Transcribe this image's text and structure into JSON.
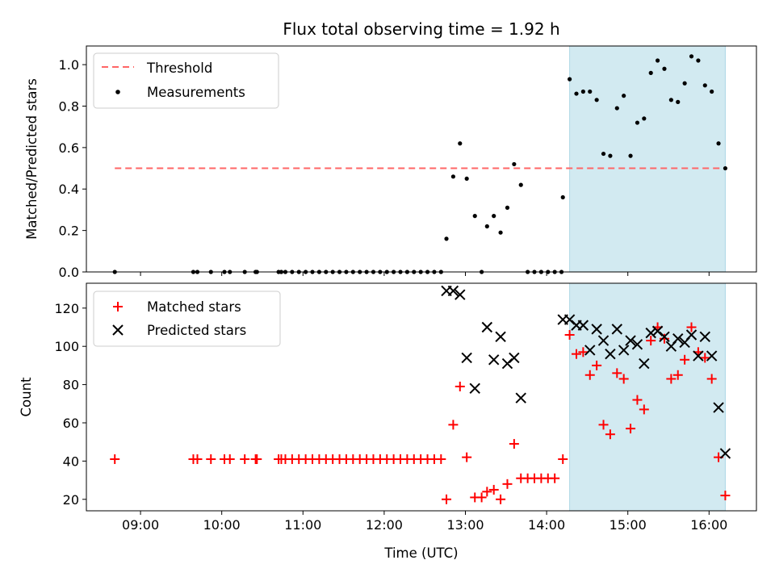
{
  "chart_data": [
    {
      "type": "scatter",
      "title": "Flux total observing time = 1.92 h",
      "xlabel": "",
      "ylabel": "Matched/Predicted stars",
      "xlim": [
        "08:20",
        "16:35"
      ],
      "ylim": [
        0.0,
        1.09
      ],
      "yticks": [
        0.0,
        0.2,
        0.4,
        0.6,
        0.8,
        1.0
      ],
      "ytick_labels": [
        "0.0",
        "0.2",
        "0.4",
        "0.6",
        "0.8",
        "1.0"
      ],
      "x_tick_labels_visible": false,
      "legend_position": "top-left",
      "highlight_span": {
        "from": "14:17",
        "to": "16:12",
        "color": "#add8e6"
      },
      "threshold": {
        "name": "Threshold",
        "value": 0.5,
        "from": "08:41",
        "to": "16:12",
        "color": "#ff6666",
        "style": "dashed"
      },
      "series": [
        {
          "name": "Measurements",
          "color": "#000000",
          "marker": "dot",
          "points": [
            [
              "08:41",
              0
            ],
            [
              "09:39",
              0
            ],
            [
              "09:42",
              0
            ],
            [
              "09:52",
              0
            ],
            [
              "10:02",
              0
            ],
            [
              "10:06",
              0
            ],
            [
              "10:17",
              0
            ],
            [
              "10:25",
              0
            ],
            [
              "10:26",
              0
            ],
            [
              "10:42",
              0
            ],
            [
              "10:44",
              0
            ],
            [
              "10:47",
              0
            ],
            [
              "10:52",
              0
            ],
            [
              "10:57",
              0
            ],
            [
              "11:02",
              0
            ],
            [
              "11:07",
              0
            ],
            [
              "11:12",
              0
            ],
            [
              "11:17",
              0
            ],
            [
              "11:22",
              0
            ],
            [
              "11:27",
              0
            ],
            [
              "11:32",
              0
            ],
            [
              "11:37",
              0
            ],
            [
              "11:42",
              0
            ],
            [
              "11:47",
              0
            ],
            [
              "11:52",
              0
            ],
            [
              "11:57",
              0
            ],
            [
              "12:02",
              0
            ],
            [
              "12:07",
              0
            ],
            [
              "12:12",
              0
            ],
            [
              "12:17",
              0
            ],
            [
              "12:22",
              0
            ],
            [
              "12:27",
              0
            ],
            [
              "12:32",
              0
            ],
            [
              "12:37",
              0
            ],
            [
              "12:42",
              0
            ],
            [
              "12:46",
              0.16
            ],
            [
              "12:51",
              0.46
            ],
            [
              "12:56",
              0.62
            ],
            [
              "13:01",
              0.45
            ],
            [
              "13:07",
              0.27
            ],
            [
              "13:12",
              0
            ],
            [
              "13:16",
              0.22
            ],
            [
              "13:21",
              0.27
            ],
            [
              "13:26",
              0.19
            ],
            [
              "13:31",
              0.31
            ],
            [
              "13:36",
              0.52
            ],
            [
              "13:41",
              0.42
            ],
            [
              "13:46",
              0
            ],
            [
              "13:51",
              0
            ],
            [
              "13:56",
              0
            ],
            [
              "14:01",
              0
            ],
            [
              "14:06",
              0
            ],
            [
              "14:11",
              0
            ],
            [
              "14:12",
              0.36
            ],
            [
              "14:17",
              0.93
            ],
            [
              "14:22",
              0.86
            ],
            [
              "14:27",
              0.87
            ],
            [
              "14:32",
              0.87
            ],
            [
              "14:37",
              0.83
            ],
            [
              "14:42",
              0.57
            ],
            [
              "14:47",
              0.56
            ],
            [
              "14:52",
              0.79
            ],
            [
              "14:57",
              0.85
            ],
            [
              "15:02",
              0.56
            ],
            [
              "15:07",
              0.72
            ],
            [
              "15:12",
              0.74
            ],
            [
              "15:17",
              0.96
            ],
            [
              "15:22",
              1.02
            ],
            [
              "15:27",
              0.98
            ],
            [
              "15:32",
              0.83
            ],
            [
              "15:37",
              0.82
            ],
            [
              "15:42",
              0.91
            ],
            [
              "15:47",
              1.04
            ],
            [
              "15:52",
              1.02
            ],
            [
              "15:57",
              0.9
            ],
            [
              "16:02",
              0.87
            ],
            [
              "16:07",
              0.62
            ],
            [
              "16:12",
              0.5
            ]
          ]
        }
      ]
    },
    {
      "type": "scatter",
      "title": "",
      "xlabel": "Time (UTC)",
      "ylabel": "Count",
      "xlim": [
        "08:20",
        "16:35"
      ],
      "ylim": [
        14,
        133
      ],
      "yticks": [
        20,
        40,
        60,
        80,
        100,
        120
      ],
      "ytick_labels": [
        "20",
        "40",
        "60",
        "80",
        "100",
        "120"
      ],
      "xticks": [
        "09:00",
        "10:00",
        "11:00",
        "12:00",
        "13:00",
        "14:00",
        "15:00",
        "16:00"
      ],
      "legend_position": "top-left",
      "highlight_span": {
        "from": "14:17",
        "to": "16:12",
        "color": "#add8e6"
      },
      "series": [
        {
          "name": "Matched stars",
          "color": "#ff0000",
          "marker": "plus",
          "points": [
            [
              "08:41",
              41
            ],
            [
              "09:39",
              41
            ],
            [
              "09:42",
              41
            ],
            [
              "09:52",
              41
            ],
            [
              "10:02",
              41
            ],
            [
              "10:06",
              41
            ],
            [
              "10:17",
              41
            ],
            [
              "10:25",
              41
            ],
            [
              "10:26",
              41
            ],
            [
              "10:42",
              41
            ],
            [
              "10:44",
              41
            ],
            [
              "10:47",
              41
            ],
            [
              "10:52",
              41
            ],
            [
              "10:57",
              41
            ],
            [
              "11:02",
              41
            ],
            [
              "11:07",
              41
            ],
            [
              "11:12",
              41
            ],
            [
              "11:17",
              41
            ],
            [
              "11:22",
              41
            ],
            [
              "11:27",
              41
            ],
            [
              "11:32",
              41
            ],
            [
              "11:37",
              41
            ],
            [
              "11:42",
              41
            ],
            [
              "11:47",
              41
            ],
            [
              "11:52",
              41
            ],
            [
              "11:57",
              41
            ],
            [
              "12:02",
              41
            ],
            [
              "12:07",
              41
            ],
            [
              "12:12",
              41
            ],
            [
              "12:17",
              41
            ],
            [
              "12:22",
              41
            ],
            [
              "12:27",
              41
            ],
            [
              "12:32",
              41
            ],
            [
              "12:37",
              41
            ],
            [
              "12:42",
              41
            ],
            [
              "12:46",
              20
            ],
            [
              "12:51",
              59
            ],
            [
              "12:56",
              79
            ],
            [
              "13:01",
              42
            ],
            [
              "13:07",
              21
            ],
            [
              "13:12",
              21
            ],
            [
              "13:16",
              24
            ],
            [
              "13:21",
              25
            ],
            [
              "13:26",
              20
            ],
            [
              "13:31",
              28
            ],
            [
              "13:36",
              49
            ],
            [
              "13:41",
              31
            ],
            [
              "13:46",
              31
            ],
            [
              "13:51",
              31
            ],
            [
              "13:56",
              31
            ],
            [
              "14:01",
              31
            ],
            [
              "14:06",
              31
            ],
            [
              "14:12",
              41
            ],
            [
              "14:17",
              106
            ],
            [
              "14:22",
              96
            ],
            [
              "14:27",
              97
            ],
            [
              "14:32",
              85
            ],
            [
              "14:37",
              90
            ],
            [
              "14:42",
              59
            ],
            [
              "14:47",
              54
            ],
            [
              "14:52",
              86
            ],
            [
              "14:57",
              83
            ],
            [
              "15:02",
              57
            ],
            [
              "15:07",
              72
            ],
            [
              "15:12",
              67
            ],
            [
              "15:17",
              103
            ],
            [
              "15:22",
              110
            ],
            [
              "15:27",
              104
            ],
            [
              "15:32",
              83
            ],
            [
              "15:37",
              85
            ],
            [
              "15:42",
              93
            ],
            [
              "15:47",
              110
            ],
            [
              "15:52",
              97
            ],
            [
              "15:57",
              94
            ],
            [
              "16:02",
              83
            ],
            [
              "16:07",
              42
            ],
            [
              "16:12",
              22
            ]
          ]
        },
        {
          "name": "Predicted stars",
          "color": "#000000",
          "marker": "x",
          "points": [
            [
              "12:46",
              129
            ],
            [
              "12:51",
              129
            ],
            [
              "12:56",
              127
            ],
            [
              "13:01",
              94
            ],
            [
              "13:07",
              78
            ],
            [
              "13:16",
              110
            ],
            [
              "13:21",
              93
            ],
            [
              "13:26",
              105
            ],
            [
              "13:31",
              91
            ],
            [
              "13:36",
              94
            ],
            [
              "13:41",
              73
            ],
            [
              "14:12",
              114
            ],
            [
              "14:17",
              114
            ],
            [
              "14:22",
              111
            ],
            [
              "14:27",
              111
            ],
            [
              "14:32",
              98
            ],
            [
              "14:37",
              109
            ],
            [
              "14:42",
              103
            ],
            [
              "14:47",
              96
            ],
            [
              "14:52",
              109
            ],
            [
              "14:57",
              98
            ],
            [
              "15:02",
              103
            ],
            [
              "15:07",
              101
            ],
            [
              "15:12",
              91
            ],
            [
              "15:17",
              107
            ],
            [
              "15:22",
              108
            ],
            [
              "15:27",
              105
            ],
            [
              "15:32",
              100
            ],
            [
              "15:37",
              104
            ],
            [
              "15:42",
              102
            ],
            [
              "15:47",
              106
            ],
            [
              "15:52",
              95
            ],
            [
              "15:57",
              105
            ],
            [
              "16:02",
              95
            ],
            [
              "16:07",
              68
            ],
            [
              "16:12",
              44
            ]
          ]
        }
      ]
    }
  ]
}
